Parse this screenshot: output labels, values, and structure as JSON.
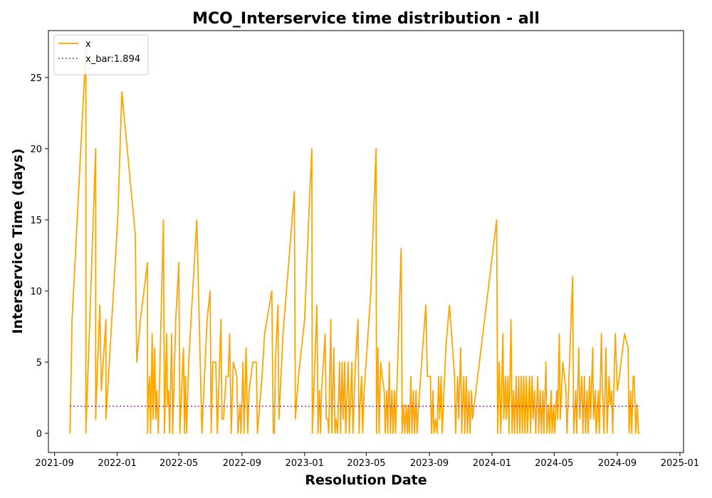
{
  "chart_data": {
    "type": "line",
    "title": "MCO_Interservice time distribution - all",
    "xlabel": "Resolution Date",
    "ylabel": "Interservice Time (days)",
    "x_axis_type": "date",
    "x_range": [
      "2021-08-20",
      "2025-01-08"
    ],
    "x_ticks": [
      "2021-09",
      "2022-01",
      "2022-05",
      "2022-09",
      "2023-01",
      "2023-05",
      "2023-09",
      "2024-01",
      "2024-05",
      "2024-09",
      "2025-01"
    ],
    "y_range": [
      -1.35,
      28.3
    ],
    "y_ticks": [
      0,
      5,
      10,
      15,
      20,
      25
    ],
    "grid": false,
    "legend_position": "top-left",
    "series": [
      {
        "name": "x",
        "style": "solid",
        "color": "#FFA500",
        "points": [
          [
            "2021-10-01",
            0
          ],
          [
            "2021-10-05",
            8
          ],
          [
            "2021-11-01",
            27
          ],
          [
            "2021-11-01",
            0
          ],
          [
            "2021-11-20",
            20
          ],
          [
            "2021-11-20",
            1
          ],
          [
            "2021-11-28",
            9
          ],
          [
            "2021-12-01",
            3
          ],
          [
            "2021-12-10",
            8
          ],
          [
            "2021-12-10",
            1
          ],
          [
            "2022-01-02",
            15
          ],
          [
            "2022-01-10",
            24
          ],
          [
            "2022-02-05",
            14
          ],
          [
            "2022-02-08",
            5
          ],
          [
            "2022-02-15",
            8
          ],
          [
            "2022-03-01",
            12
          ],
          [
            "2022-03-01",
            0
          ],
          [
            "2022-03-03",
            3
          ],
          [
            "2022-03-05",
            4
          ],
          [
            "2022-03-07",
            0
          ],
          [
            "2022-03-10",
            7
          ],
          [
            "2022-03-12",
            1
          ],
          [
            "2022-03-15",
            6
          ],
          [
            "2022-03-17",
            1
          ],
          [
            "2022-03-19",
            3
          ],
          [
            "2022-03-22",
            0
          ],
          [
            "2022-04-01",
            15
          ],
          [
            "2022-04-03",
            0
          ],
          [
            "2022-04-07",
            7
          ],
          [
            "2022-04-09",
            2
          ],
          [
            "2022-04-11",
            3
          ],
          [
            "2022-04-13",
            0
          ],
          [
            "2022-04-17",
            7
          ],
          [
            "2022-04-19",
            0
          ],
          [
            "2022-04-25",
            8
          ],
          [
            "2022-05-01",
            12
          ],
          [
            "2022-05-03",
            0
          ],
          [
            "2022-05-10",
            6
          ],
          [
            "2022-05-12",
            0
          ],
          [
            "2022-05-14",
            4
          ],
          [
            "2022-05-16",
            0
          ],
          [
            "2022-05-20",
            5
          ],
          [
            "2022-06-05",
            15
          ],
          [
            "2022-06-15",
            0
          ],
          [
            "2022-06-25",
            8
          ],
          [
            "2022-07-01",
            10
          ],
          [
            "2022-07-03",
            0
          ],
          [
            "2022-07-06",
            5
          ],
          [
            "2022-07-12",
            5
          ],
          [
            "2022-07-15",
            0
          ],
          [
            "2022-07-22",
            8
          ],
          [
            "2022-07-24",
            1
          ],
          [
            "2022-07-27",
            1
          ],
          [
            "2022-08-01",
            4
          ],
          [
            "2022-08-05",
            4
          ],
          [
            "2022-08-08",
            7
          ],
          [
            "2022-08-11",
            0
          ],
          [
            "2022-08-15",
            5
          ],
          [
            "2022-08-22",
            4
          ],
          [
            "2022-08-24",
            0
          ],
          [
            "2022-08-28",
            2
          ],
          [
            "2022-08-30",
            0
          ],
          [
            "2022-09-03",
            5
          ],
          [
            "2022-09-05",
            0
          ],
          [
            "2022-09-09",
            6
          ],
          [
            "2022-09-12",
            0
          ],
          [
            "2022-09-15",
            3
          ],
          [
            "2022-09-22",
            5
          ],
          [
            "2022-09-29",
            5
          ],
          [
            "2022-10-01",
            0
          ],
          [
            "2022-10-10",
            4
          ],
          [
            "2022-10-15",
            7
          ],
          [
            "2022-10-29",
            10
          ],
          [
            "2022-11-01",
            0
          ],
          [
            "2022-11-03",
            0
          ],
          [
            "2022-11-05",
            5
          ],
          [
            "2022-11-10",
            9
          ],
          [
            "2022-11-12",
            1
          ],
          [
            "2022-11-20",
            7
          ],
          [
            "2022-12-12",
            17
          ],
          [
            "2022-12-14",
            1
          ],
          [
            "2022-12-20",
            4
          ],
          [
            "2023-01-01",
            8
          ],
          [
            "2023-01-10",
            16
          ],
          [
            "2023-01-15",
            20
          ],
          [
            "2023-01-16",
            0
          ],
          [
            "2023-01-25",
            9
          ],
          [
            "2023-01-27",
            0
          ],
          [
            "2023-01-30",
            3
          ],
          [
            "2023-02-01",
            0
          ],
          [
            "2023-02-03",
            3
          ],
          [
            "2023-02-10",
            7
          ],
          [
            "2023-02-12",
            1
          ],
          [
            "2023-02-15",
            1
          ],
          [
            "2023-02-17",
            0
          ],
          [
            "2023-02-21",
            8
          ],
          [
            "2023-02-23",
            0
          ],
          [
            "2023-02-27",
            6
          ],
          [
            "2023-03-01",
            0
          ],
          [
            "2023-03-03",
            1
          ],
          [
            "2023-03-06",
            0
          ],
          [
            "2023-03-10",
            5
          ],
          [
            "2023-03-12",
            0
          ],
          [
            "2023-03-15",
            5
          ],
          [
            "2023-03-17",
            1
          ],
          [
            "2023-03-20",
            5
          ],
          [
            "2023-03-22",
            0
          ],
          [
            "2023-03-27",
            5
          ],
          [
            "2023-03-29",
            0
          ],
          [
            "2023-04-03",
            5
          ],
          [
            "2023-04-05",
            0
          ],
          [
            "2023-04-10",
            5
          ],
          [
            "2023-04-15",
            8
          ],
          [
            "2023-04-17",
            0
          ],
          [
            "2023-04-19",
            2
          ],
          [
            "2023-04-22",
            4
          ],
          [
            "2023-04-24",
            0
          ],
          [
            "2023-04-27",
            3
          ],
          [
            "2023-05-10",
            10
          ],
          [
            "2023-05-20",
            20
          ],
          [
            "2023-05-21",
            0
          ],
          [
            "2023-05-24",
            6
          ],
          [
            "2023-05-26",
            0
          ],
          [
            "2023-05-29",
            5
          ],
          [
            "2023-06-01",
            4
          ],
          [
            "2023-06-05",
            3
          ],
          [
            "2023-06-07",
            0
          ],
          [
            "2023-06-10",
            3
          ],
          [
            "2023-06-12",
            0
          ],
          [
            "2023-06-15",
            5
          ],
          [
            "2023-06-17",
            0
          ],
          [
            "2023-06-20",
            3
          ],
          [
            "2023-06-22",
            0
          ],
          [
            "2023-06-25",
            3
          ],
          [
            "2023-06-27",
            0
          ],
          [
            "2023-07-08",
            13
          ],
          [
            "2023-07-10",
            0
          ],
          [
            "2023-07-13",
            2
          ],
          [
            "2023-07-15",
            0
          ],
          [
            "2023-07-18",
            2
          ],
          [
            "2023-07-20",
            0
          ],
          [
            "2023-07-22",
            2
          ],
          [
            "2023-07-24",
            0
          ],
          [
            "2023-07-27",
            4
          ],
          [
            "2023-07-29",
            0
          ],
          [
            "2023-08-01",
            3
          ],
          [
            "2023-08-03",
            0
          ],
          [
            "2023-08-06",
            3
          ],
          [
            "2023-08-08",
            0
          ],
          [
            "2023-08-11",
            2
          ],
          [
            "2023-08-25",
            9
          ],
          [
            "2023-08-28",
            4
          ],
          [
            "2023-09-03",
            4
          ],
          [
            "2023-09-05",
            0
          ],
          [
            "2023-09-08",
            3
          ],
          [
            "2023-09-10",
            0
          ],
          [
            "2023-09-13",
            1
          ],
          [
            "2023-09-16",
            0
          ],
          [
            "2023-09-19",
            4
          ],
          [
            "2023-09-21",
            1
          ],
          [
            "2023-09-24",
            4
          ],
          [
            "2023-09-26",
            0
          ],
          [
            "2023-10-03",
            6
          ],
          [
            "2023-10-10",
            9
          ],
          [
            "2023-10-20",
            4
          ],
          [
            "2023-10-22",
            0
          ],
          [
            "2023-10-26",
            4
          ],
          [
            "2023-10-28",
            1
          ],
          [
            "2023-11-01",
            6
          ],
          [
            "2023-11-03",
            0
          ],
          [
            "2023-11-07",
            4
          ],
          [
            "2023-11-09",
            0
          ],
          [
            "2023-11-12",
            4
          ],
          [
            "2023-11-14",
            0
          ],
          [
            "2023-11-17",
            3
          ],
          [
            "2023-11-19",
            0
          ],
          [
            "2023-11-22",
            3
          ],
          [
            "2023-11-24",
            1
          ],
          [
            "2024-01-10",
            15
          ],
          [
            "2024-01-12",
            0
          ],
          [
            "2024-01-15",
            5
          ],
          [
            "2024-01-18",
            0
          ],
          [
            "2024-01-22",
            7
          ],
          [
            "2024-01-24",
            1
          ],
          [
            "2024-01-27",
            4
          ],
          [
            "2024-01-29",
            1
          ],
          [
            "2024-02-01",
            4
          ],
          [
            "2024-02-03",
            0
          ],
          [
            "2024-02-07",
            8
          ],
          [
            "2024-02-09",
            0
          ],
          [
            "2024-02-12",
            3
          ],
          [
            "2024-02-14",
            0
          ],
          [
            "2024-02-17",
            4
          ],
          [
            "2024-02-19",
            0
          ],
          [
            "2024-02-22",
            4
          ],
          [
            "2024-02-24",
            0
          ],
          [
            "2024-02-27",
            4
          ],
          [
            "2024-02-29",
            0
          ],
          [
            "2024-03-03",
            4
          ],
          [
            "2024-03-05",
            0
          ],
          [
            "2024-03-08",
            4
          ],
          [
            "2024-03-10",
            0
          ],
          [
            "2024-03-14",
            4
          ],
          [
            "2024-03-16",
            0
          ],
          [
            "2024-03-19",
            4
          ],
          [
            "2024-03-21",
            1
          ],
          [
            "2024-03-24",
            3
          ],
          [
            "2024-03-26",
            0
          ],
          [
            "2024-03-30",
            4
          ],
          [
            "2024-04-01",
            0
          ],
          [
            "2024-04-04",
            3
          ],
          [
            "2024-04-06",
            0
          ],
          [
            "2024-04-09",
            3
          ],
          [
            "2024-04-11",
            0
          ],
          [
            "2024-04-15",
            5
          ],
          [
            "2024-04-17",
            0
          ],
          [
            "2024-04-20",
            2
          ],
          [
            "2024-04-22",
            0
          ],
          [
            "2024-04-25",
            3
          ],
          [
            "2024-04-27",
            0
          ],
          [
            "2024-04-30",
            2
          ],
          [
            "2024-05-02",
            0
          ],
          [
            "2024-05-06",
            3
          ],
          [
            "2024-05-08",
            1
          ],
          [
            "2024-05-11",
            7
          ],
          [
            "2024-05-13",
            1
          ],
          [
            "2024-05-18",
            5
          ],
          [
            "2024-05-24",
            3
          ],
          [
            "2024-05-26",
            0
          ],
          [
            "2024-06-01",
            6
          ],
          [
            "2024-06-06",
            11
          ],
          [
            "2024-06-08",
            0
          ],
          [
            "2024-06-12",
            3
          ],
          [
            "2024-06-14",
            0
          ],
          [
            "2024-06-18",
            6
          ],
          [
            "2024-06-20",
            1
          ],
          [
            "2024-06-24",
            4
          ],
          [
            "2024-06-26",
            0
          ],
          [
            "2024-06-29",
            4
          ],
          [
            "2024-07-01",
            0
          ],
          [
            "2024-07-04",
            3
          ],
          [
            "2024-07-06",
            0
          ],
          [
            "2024-07-09",
            4
          ],
          [
            "2024-07-11",
            1
          ],
          [
            "2024-07-15",
            6
          ],
          [
            "2024-07-17",
            1
          ],
          [
            "2024-07-20",
            3
          ],
          [
            "2024-07-22",
            0
          ],
          [
            "2024-07-26",
            3
          ],
          [
            "2024-07-28",
            0
          ],
          [
            "2024-08-01",
            7
          ],
          [
            "2024-08-03",
            3
          ],
          [
            "2024-08-06",
            0
          ],
          [
            "2024-08-10",
            6
          ],
          [
            "2024-08-12",
            0
          ],
          [
            "2024-08-16",
            4
          ],
          [
            "2024-08-18",
            2
          ],
          [
            "2024-08-21",
            3
          ],
          [
            "2024-08-23",
            0
          ],
          [
            "2024-08-28",
            7
          ],
          [
            "2024-09-01",
            3
          ],
          [
            "2024-09-05",
            4
          ],
          [
            "2024-09-15",
            7
          ],
          [
            "2024-09-22",
            6
          ],
          [
            "2024-09-24",
            0
          ],
          [
            "2024-09-27",
            3
          ],
          [
            "2024-09-29",
            0
          ],
          [
            "2024-10-02",
            4
          ],
          [
            "2024-10-04",
            4
          ],
          [
            "2024-10-07",
            0
          ],
          [
            "2024-10-10",
            2
          ],
          [
            "2024-10-12",
            0
          ],
          [
            "2024-10-15",
            0
          ]
        ]
      },
      {
        "name": "x_bar:1.894",
        "style": "dotted",
        "color": "#800080",
        "points": [
          [
            "2021-10-01",
            1.894
          ],
          [
            "2024-10-15",
            1.894
          ]
        ]
      }
    ]
  }
}
